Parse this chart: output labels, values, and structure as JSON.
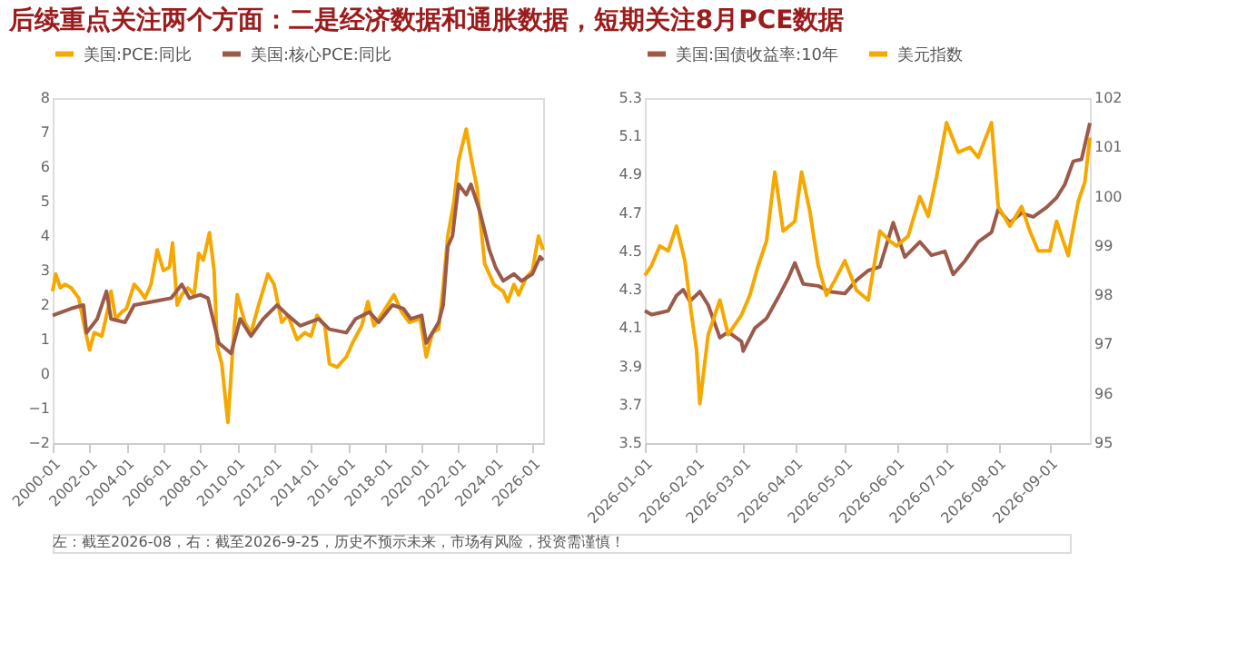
{
  "chart_data": [
    {
      "type": "line",
      "title": "后续重点关注两个方面：二是经济数据和通胀数据，短期关注8月PCE数据",
      "legend": "top",
      "grid": false,
      "marker": "none",
      "line_style": "solid",
      "xlim": [
        "2000-01",
        "2026-08"
      ],
      "xticks": [
        "2000-01",
        "2002-01",
        "2004-01",
        "2006-01",
        "2008-01",
        "2010-01",
        "2012-01",
        "2014-01",
        "2016-01",
        "2018-01",
        "2020-01",
        "2022-01",
        "2024-01",
        "2026-01"
      ],
      "ylim": [
        -2,
        8
      ],
      "yticks": [
        -2,
        -1,
        0,
        1,
        2,
        3,
        4,
        5,
        6,
        7,
        8
      ],
      "series": [
        {
          "name": "美国:PCE:同比",
          "color": "#f5a800",
          "x": [
            "2000-01",
            "2000-03",
            "2000-06",
            "2000-09",
            "2001-01",
            "2001-06",
            "2001-10",
            "2002-01",
            "2002-04",
            "2002-09",
            "2003-01",
            "2003-03",
            "2003-06",
            "2003-10",
            "2004-01",
            "2004-06",
            "2004-10",
            "2005-01",
            "2005-05",
            "2005-09",
            "2006-01",
            "2006-05",
            "2006-07",
            "2006-10",
            "2007-01",
            "2007-05",
            "2007-09",
            "2007-12",
            "2008-03",
            "2008-07",
            "2008-10",
            "2008-12",
            "2009-03",
            "2009-07",
            "2009-11",
            "2010-01",
            "2010-06",
            "2010-10",
            "2011-03",
            "2011-09",
            "2012-01",
            "2012-06",
            "2012-10",
            "2013-04",
            "2013-09",
            "2014-01",
            "2014-05",
            "2014-10",
            "2015-01",
            "2015-06",
            "2015-12",
            "2016-04",
            "2016-10",
            "2017-02",
            "2017-06",
            "2017-12",
            "2018-07",
            "2018-12",
            "2019-05",
            "2019-12",
            "2020-04",
            "2020-08",
            "2020-12",
            "2021-03",
            "2021-06",
            "2021-10",
            "2022-01",
            "2022-06",
            "2022-09",
            "2023-01",
            "2023-06",
            "2023-12",
            "2024-06",
            "2024-09",
            "2025-01",
            "2025-04",
            "2025-09",
            "2026-01",
            "2026-05",
            "2026-08"
          ],
          "values": [
            2.4,
            2.9,
            2.5,
            2.6,
            2.5,
            2.2,
            1.3,
            0.7,
            1.2,
            1.1,
            1.9,
            2.4,
            1.6,
            1.8,
            1.9,
            2.6,
            2.4,
            2.2,
            2.6,
            3.6,
            3.0,
            3.1,
            3.8,
            2.0,
            2.3,
            2.5,
            2.3,
            3.5,
            3.3,
            4.1,
            3.0,
            0.8,
            0.3,
            -1.4,
            1.3,
            2.3,
            1.5,
            1.2,
            2.0,
            2.9,
            2.6,
            1.5,
            1.7,
            1.0,
            1.2,
            1.1,
            1.7,
            1.4,
            0.3,
            0.2,
            0.5,
            0.9,
            1.4,
            2.1,
            1.4,
            1.8,
            2.3,
            1.8,
            1.5,
            1.6,
            0.5,
            1.2,
            1.3,
            2.5,
            4.0,
            5.0,
            6.2,
            7.1,
            6.3,
            5.4,
            3.2,
            2.6,
            2.4,
            2.1,
            2.6,
            2.3,
            2.8,
            3.0,
            4.0,
            3.6
          ]
        },
        {
          "name": "美国:核心PCE:同比",
          "color": "#9b5a4a",
          "x": [
            "2000-01",
            "2001-01",
            "2001-09",
            "2001-11",
            "2002-06",
            "2002-12",
            "2003-03",
            "2003-12",
            "2004-06",
            "2005-06",
            "2006-06",
            "2007-01",
            "2007-06",
            "2008-01",
            "2008-06",
            "2009-01",
            "2009-09",
            "2010-03",
            "2010-10",
            "2011-06",
            "2012-03",
            "2012-10",
            "2013-06",
            "2014-06",
            "2015-01",
            "2015-12",
            "2016-06",
            "2017-03",
            "2017-09",
            "2018-06",
            "2019-01",
            "2019-06",
            "2020-01",
            "2020-04",
            "2020-12",
            "2021-03",
            "2021-06",
            "2021-09",
            "2022-01",
            "2022-06",
            "2022-09",
            "2023-03",
            "2023-09",
            "2024-01",
            "2024-06",
            "2025-01",
            "2025-06",
            "2026-01",
            "2026-06",
            "2026-08"
          ],
          "values": [
            1.7,
            1.9,
            2.0,
            1.2,
            1.6,
            2.4,
            1.6,
            1.5,
            2.0,
            2.1,
            2.2,
            2.6,
            2.2,
            2.3,
            2.2,
            0.9,
            0.6,
            1.6,
            1.1,
            1.6,
            2.0,
            1.7,
            1.4,
            1.6,
            1.3,
            1.2,
            1.6,
            1.8,
            1.5,
            2.0,
            1.9,
            1.6,
            1.7,
            0.9,
            1.5,
            2.0,
            3.7,
            4.0,
            5.5,
            5.2,
            5.5,
            4.7,
            3.6,
            3.1,
            2.7,
            2.9,
            2.7,
            2.9,
            3.4,
            3.3
          ]
        }
      ]
    },
    {
      "type": "line",
      "legend": "top",
      "grid": false,
      "marker": "none",
      "line_style": "solid",
      "annotations": [
        "左：截至2026-08，右：截至2026-9-25，历史不预示未来，市场有风险，投资需谨慎！"
      ],
      "xlim": [
        "2026-01-01",
        "2026-09-25"
      ],
      "xticks": [
        "2026-01-01",
        "2026-02-01",
        "2026-03-01",
        "2026-04-01",
        "2026-05-01",
        "2026-06-01",
        "2026-07-01",
        "2026-08-01",
        "2026-09-01"
      ],
      "ylim": [
        3.5,
        5.3
      ],
      "yticks": [
        3.5,
        3.7,
        3.9,
        4.1,
        4.3,
        4.5,
        4.7,
        4.9,
        5.1,
        5.3
      ],
      "y2lim": [
        95,
        102
      ],
      "y2ticks": [
        95,
        96,
        97,
        98,
        99,
        100,
        101,
        102
      ],
      "series": [
        {
          "name": "美国:国债收益率:10年",
          "color": "#9b5a4a",
          "x": [
            "2026-01-01",
            "2026-01-05",
            "2026-01-10",
            "2026-01-15",
            "2026-01-20",
            "2026-01-24",
            "2026-01-28",
            "2026-02-03",
            "2026-02-08",
            "2026-02-15",
            "2026-02-20",
            "2026-02-28",
            "2026-03-01",
            "2026-03-08",
            "2026-03-15",
            "2026-03-22",
            "2026-03-28",
            "2026-04-01",
            "2026-04-06",
            "2026-04-15",
            "2026-04-22",
            "2026-05-01",
            "2026-05-08",
            "2026-05-15",
            "2026-05-22",
            "2026-05-30",
            "2026-06-06",
            "2026-06-15",
            "2026-06-22",
            "2026-06-30",
            "2026-07-05",
            "2026-07-12",
            "2026-07-20",
            "2026-07-28",
            "2026-08-01",
            "2026-08-08",
            "2026-08-15",
            "2026-08-22",
            "2026-08-30",
            "2026-09-05",
            "2026-09-10",
            "2026-09-15",
            "2026-09-20",
            "2026-09-25"
          ],
          "values": [
            4.19,
            4.17,
            4.18,
            4.19,
            4.27,
            4.3,
            4.24,
            4.29,
            4.22,
            4.05,
            4.08,
            4.03,
            3.98,
            4.1,
            4.15,
            4.26,
            4.36,
            4.44,
            4.33,
            4.32,
            4.29,
            4.28,
            4.35,
            4.4,
            4.42,
            4.65,
            4.47,
            4.55,
            4.48,
            4.5,
            4.38,
            4.45,
            4.55,
            4.6,
            4.72,
            4.65,
            4.7,
            4.68,
            4.73,
            4.78,
            4.85,
            4.97,
            4.98,
            5.17
          ]
        },
        {
          "name": "美元指数",
          "color": "#f5a800",
          "axis": "y2",
          "x": [
            "2026-01-01",
            "2026-01-05",
            "2026-01-10",
            "2026-01-15",
            "2026-01-20",
            "2026-01-25",
            "2026-01-29",
            "2026-02-01",
            "2026-02-03",
            "2026-02-08",
            "2026-02-15",
            "2026-02-20",
            "2026-02-28",
            "2026-03-05",
            "2026-03-10",
            "2026-03-15",
            "2026-03-20",
            "2026-03-25",
            "2026-04-01",
            "2026-04-05",
            "2026-04-10",
            "2026-04-15",
            "2026-04-20",
            "2026-04-25",
            "2026-05-01",
            "2026-05-08",
            "2026-05-15",
            "2026-05-22",
            "2026-05-28",
            "2026-06-01",
            "2026-06-08",
            "2026-06-15",
            "2026-06-20",
            "2026-06-25",
            "2026-07-01",
            "2026-07-08",
            "2026-07-15",
            "2026-07-20",
            "2026-07-28",
            "2026-08-01",
            "2026-08-08",
            "2026-08-15",
            "2026-08-20",
            "2026-08-25",
            "2026-09-01",
            "2026-09-05",
            "2026-09-12",
            "2026-09-18",
            "2026-09-22",
            "2026-09-25"
          ],
          "values": [
            98.4,
            98.6,
            99.0,
            98.9,
            99.4,
            98.7,
            97.6,
            96.9,
            95.8,
            97.2,
            97.9,
            97.2,
            97.6,
            98.0,
            98.6,
            99.1,
            100.5,
            99.3,
            99.5,
            100.5,
            99.7,
            98.6,
            98.0,
            98.3,
            98.7,
            98.1,
            97.9,
            99.3,
            99.1,
            99.0,
            99.2,
            100.0,
            99.6,
            100.4,
            101.5,
            100.9,
            101.0,
            100.8,
            101.5,
            99.8,
            99.4,
            99.8,
            99.3,
            98.9,
            98.9,
            99.5,
            98.8,
            99.9,
            100.3,
            101.2
          ]
        }
      ]
    }
  ]
}
